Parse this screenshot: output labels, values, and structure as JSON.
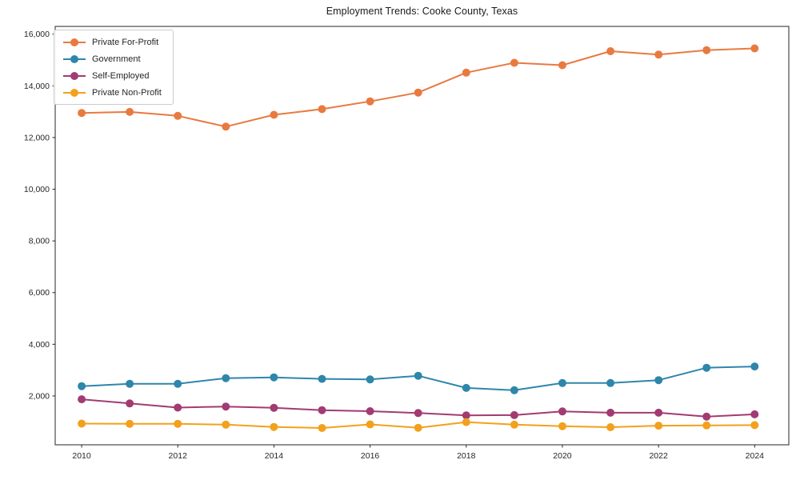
{
  "chart_data": {
    "type": "line",
    "title": "Employment Trends: Cooke County, Texas",
    "xlabel": "",
    "ylabel": "",
    "grid": false,
    "legend_position": "upper-left",
    "x": [
      2010,
      2011,
      2012,
      2013,
      2014,
      2015,
      2016,
      2017,
      2018,
      2019,
      2020,
      2021,
      2022,
      2023,
      2024
    ],
    "xtick_values": [
      2010,
      2012,
      2014,
      2016,
      2018,
      2020,
      2022,
      2024
    ],
    "xtick_labels": [
      "2010",
      "2012",
      "2014",
      "2016",
      "2018",
      "2020",
      "2022",
      "2024"
    ],
    "ytick_values": [
      2000,
      4000,
      6000,
      8000,
      10000,
      12000,
      14000,
      16000
    ],
    "ytick_labels": [
      "2,000",
      "4,000",
      "6,000",
      "8,000",
      "10,000",
      "12,000",
      "14,000",
      "16,000"
    ],
    "xlim": [
      2009.45,
      2024.71
    ],
    "ylim": [
      110,
      16300
    ],
    "series": [
      {
        "name": "Private For-Profit",
        "color": "#E87A40",
        "values": [
          12950,
          12990,
          12840,
          12420,
          12880,
          13100,
          13400,
          13740,
          14510,
          14890,
          14800,
          15340,
          15210,
          15380,
          15450
        ]
      },
      {
        "name": "Government",
        "color": "#2E86AB",
        "values": [
          2380,
          2470,
          2470,
          2690,
          2720,
          2660,
          2640,
          2780,
          2310,
          2220,
          2500,
          2500,
          2610,
          3090,
          3140
        ]
      },
      {
        "name": "Self-Employed",
        "color": "#A23B72",
        "values": [
          1870,
          1710,
          1550,
          1590,
          1540,
          1450,
          1410,
          1340,
          1250,
          1260,
          1400,
          1350,
          1350,
          1200,
          1290
        ]
      },
      {
        "name": "Private Non-Profit",
        "color": "#F2A11C",
        "values": [
          930,
          920,
          920,
          890,
          800,
          760,
          900,
          770,
          990,
          890,
          830,
          790,
          850,
          860,
          870
        ]
      }
    ]
  }
}
